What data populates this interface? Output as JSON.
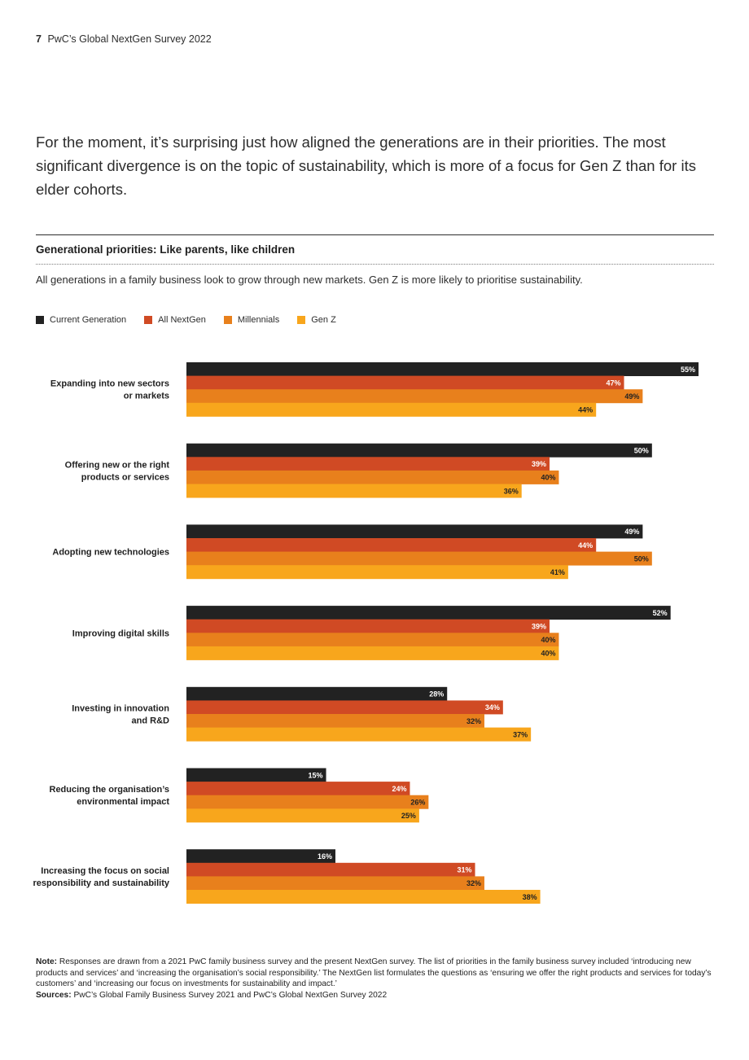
{
  "header": {
    "page_number": "7",
    "title": "PwC’s Global NextGen Survey 2022"
  },
  "intro": "For the moment, it’s surprising just how aligned the generations are in their priorities. The most significant divergence is on the topic of sustainability, which is more of a focus for Gen Z than for its elder cohorts.",
  "colors": {
    "current_generation": "#222222",
    "all_nextgen": "#d04a24",
    "millennials": "#e8801c",
    "gen_z": "#f8a61c"
  },
  "chart_data": {
    "type": "bar",
    "orientation": "horizontal",
    "title": "Generational priorities: Like parents, like children",
    "subtitle": "All generations in a family business look to grow through new markets. Gen Z is more likely to prioritise sustainability.",
    "categories": [
      [
        "Expanding into new sectors",
        "or markets"
      ],
      [
        "Offering new or the right",
        "products or services"
      ],
      [
        "Adopting new technologies"
      ],
      [
        "Improving digital skills"
      ],
      [
        "Investing in innovation",
        "and R&D"
      ],
      [
        "Reducing the organisation’s",
        "environmental impact"
      ],
      [
        "Increasing the focus on social",
        "responsibility and sustainability"
      ]
    ],
    "series": [
      {
        "name": "Current Generation",
        "color": "#222222",
        "label_color": "#ffffff",
        "values": [
          55,
          50,
          49,
          52,
          28,
          15,
          16
        ]
      },
      {
        "name": "All NextGen",
        "color": "#d04a24",
        "label_color": "#ffffff",
        "values": [
          47,
          39,
          44,
          39,
          34,
          24,
          31
        ]
      },
      {
        "name": "Millennials",
        "color": "#e8801c",
        "label_color": "#222222",
        "values": [
          49,
          40,
          50,
          40,
          32,
          26,
          32
        ]
      },
      {
        "name": "Gen Z",
        "color": "#f8a61c",
        "label_color": "#222222",
        "values": [
          44,
          36,
          41,
          40,
          37,
          25,
          38
        ]
      }
    ],
    "value_suffix": "%",
    "xlim": [
      0,
      55
    ],
    "legend_position": "top-left",
    "grid": false
  },
  "note": {
    "label": "Note:",
    "text": " Responses are drawn from a 2021 PwC family business survey and the present NextGen survey. The list of priorities in the family business survey included ‘introducing new products and services’ and ‘increasing the organisation’s social responsibility.’ The NextGen list formulates the questions as ‘ensuring we offer the right products and services for today’s customers’ and ‘increasing our focus on investments for sustainability and impact.’"
  },
  "sources": {
    "label": "Sources:",
    "text": " PwC’s Global Family Business Survey 2021 and PwC’s Global NextGen Survey 2022"
  }
}
